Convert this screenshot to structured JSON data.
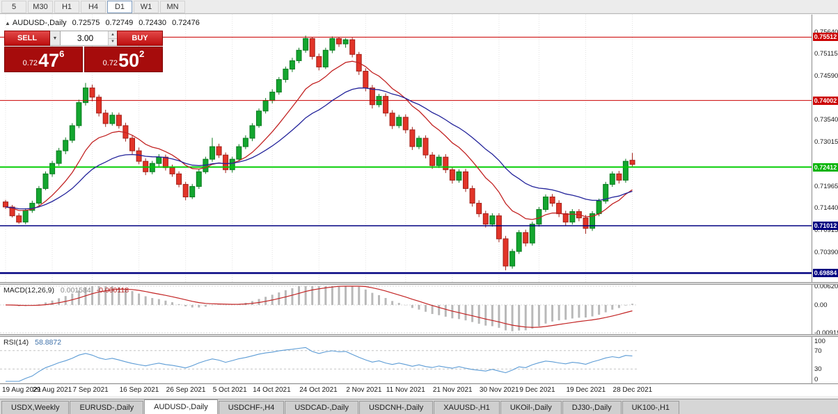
{
  "toolbar": {
    "timeframes": [
      {
        "label": "5",
        "active": false
      },
      {
        "label": "M30",
        "active": false
      },
      {
        "label": "H1",
        "active": false
      },
      {
        "label": "H4",
        "active": false
      },
      {
        "label": "D1",
        "active": true
      },
      {
        "label": "W1",
        "active": false
      },
      {
        "label": "MN",
        "active": false
      }
    ]
  },
  "chart": {
    "header": {
      "collapse_icon": "▲",
      "symbol": "AUDUSD-,Daily",
      "open": "0.72575",
      "high": "0.72749",
      "low": "0.72430",
      "close": "0.72476"
    }
  },
  "trade": {
    "sell_label": "SELL",
    "buy_label": "BUY",
    "volume": "3.00",
    "dropdown_icon": "▼",
    "up_icon": "▲",
    "down_icon": "▼",
    "bid": {
      "prefix": "0.72",
      "big": "47",
      "sup": "6"
    },
    "ask": {
      "prefix": "0.72",
      "big": "50",
      "sup": "2"
    }
  },
  "indicators": {
    "macd": {
      "title": "MACD(12,26,9)",
      "main": "0.001584",
      "signal": "-0.000118",
      "fast": 12,
      "slow": 26,
      "smooth": 9,
      "max": 0.0062,
      "min": -0.0092,
      "axis": [
        {
          "label": "0.00620",
          "value": 0.0062
        },
        {
          "label": "0.00",
          "value": 0
        },
        {
          "label": "-0.00919",
          "value": -0.00919
        }
      ]
    },
    "rsi": {
      "title": "RSI(14)",
      "value": "58.8872",
      "period": 14,
      "levels": [
        70,
        30
      ],
      "axis": [
        {
          "label": "100",
          "value": 100
        },
        {
          "label": "70",
          "value": 70
        },
        {
          "label": "30",
          "value": 30
        },
        {
          "label": "0",
          "value": 0
        }
      ]
    }
  },
  "chart_data": {
    "type": "candlestick",
    "symbol": "AUDUSD-",
    "timeframe": "Daily",
    "price_max": 0.7605,
    "price_min": 0.6967,
    "y_ticks": [
      {
        "label": "0.75640",
        "value": 0.7564
      },
      {
        "label": "0.75115",
        "value": 0.75115
      },
      {
        "label": "0.74590",
        "value": 0.7459
      },
      {
        "label": "0.73540",
        "value": 0.7354
      },
      {
        "label": "0.73015",
        "value": 0.73015
      },
      {
        "label": "0.71965",
        "value": 0.71965
      },
      {
        "label": "0.71440",
        "value": 0.7144
      },
      {
        "label": "0.70915",
        "value": 0.70915
      },
      {
        "label": "0.70390",
        "value": 0.7039
      }
    ],
    "levels": [
      {
        "label": "0.75512",
        "price": 0.75512,
        "color": "#cc0000",
        "badge": "#cc0000",
        "width": 1
      },
      {
        "label": "0.74002",
        "price": 0.74002,
        "color": "#cc0000",
        "badge": "#cc0000",
        "width": 1
      },
      {
        "label": "0.72412",
        "price": 0.72412,
        "color": "#00cc00",
        "badge": "#00b300",
        "width": 2
      },
      {
        "label": "0.71012",
        "price": 0.71012,
        "color": "#000080",
        "badge": "#000080",
        "width": 1.5
      },
      {
        "label": "0.69884",
        "price": 0.69884,
        "color": "#000080",
        "badge": "#000080",
        "width": 2.5
      }
    ],
    "overlays": [
      {
        "name": "ema-fast",
        "period": 12,
        "color": "#c22222"
      },
      {
        "name": "ema-slow",
        "period": 26,
        "color": "#22229a"
      }
    ],
    "x_labels": [
      {
        "text": "19 Aug 2021",
        "i": 0
      },
      {
        "text": "29 Aug 2021",
        "i": 7
      },
      {
        "text": "7 Sep 2021",
        "i": 13
      },
      {
        "text": "16 Sep 2021",
        "i": 20
      },
      {
        "text": "26 Sep 2021",
        "i": 27
      },
      {
        "text": "5 Oct 2021",
        "i": 34
      },
      {
        "text": "14 Oct 2021",
        "i": 40
      },
      {
        "text": "24 Oct 2021",
        "i": 47
      },
      {
        "text": "2 Nov 2021",
        "i": 54
      },
      {
        "text": "11 Nov 2021",
        "i": 60
      },
      {
        "text": "21 Nov 2021",
        "i": 67
      },
      {
        "text": "30 Nov 2021",
        "i": 74
      },
      {
        "text": "9 Dec 2021",
        "i": 80
      },
      {
        "text": "19 Dec 2021",
        "i": 87
      },
      {
        "text": "28 Dec 2021",
        "i": 94
      }
    ],
    "candles": [
      [
        0.7158,
        0.7163,
        0.7141,
        0.7146
      ],
      [
        0.7146,
        0.7151,
        0.7121,
        0.7125
      ],
      [
        0.7125,
        0.7131,
        0.7106,
        0.711
      ],
      [
        0.711,
        0.7143,
        0.7105,
        0.7138
      ],
      [
        0.7138,
        0.7161,
        0.7132,
        0.7155
      ],
      [
        0.7155,
        0.7196,
        0.715,
        0.719
      ],
      [
        0.719,
        0.7231,
        0.7186,
        0.7225
      ],
      [
        0.7225,
        0.7256,
        0.7218,
        0.725
      ],
      [
        0.725,
        0.7287,
        0.7244,
        0.728
      ],
      [
        0.728,
        0.7312,
        0.7272,
        0.7305
      ],
      [
        0.7305,
        0.7346,
        0.7299,
        0.734
      ],
      [
        0.734,
        0.7402,
        0.7334,
        0.7395
      ],
      [
        0.7395,
        0.7442,
        0.7388,
        0.743
      ],
      [
        0.743,
        0.7438,
        0.7398,
        0.7408
      ],
      [
        0.7408,
        0.7414,
        0.7362,
        0.737
      ],
      [
        0.737,
        0.7378,
        0.7337,
        0.7345
      ],
      [
        0.7345,
        0.7372,
        0.734,
        0.7365
      ],
      [
        0.7365,
        0.7371,
        0.7333,
        0.734
      ],
      [
        0.734,
        0.7347,
        0.7302,
        0.731
      ],
      [
        0.731,
        0.7316,
        0.7272,
        0.728
      ],
      [
        0.728,
        0.7288,
        0.7248,
        0.7255
      ],
      [
        0.7255,
        0.7262,
        0.7222,
        0.723
      ],
      [
        0.723,
        0.7256,
        0.7224,
        0.725
      ],
      [
        0.725,
        0.7272,
        0.7243,
        0.7265
      ],
      [
        0.7265,
        0.7271,
        0.7233,
        0.724
      ],
      [
        0.724,
        0.7247,
        0.7218,
        0.7225
      ],
      [
        0.7225,
        0.7231,
        0.7193,
        0.72
      ],
      [
        0.72,
        0.7206,
        0.7162,
        0.717
      ],
      [
        0.717,
        0.7201,
        0.7165,
        0.7195
      ],
      [
        0.7195,
        0.7236,
        0.7189,
        0.723
      ],
      [
        0.723,
        0.7266,
        0.7225,
        0.726
      ],
      [
        0.726,
        0.7311,
        0.7254,
        0.729
      ],
      [
        0.729,
        0.7297,
        0.7263,
        0.727
      ],
      [
        0.727,
        0.7276,
        0.7227,
        0.7235
      ],
      [
        0.7235,
        0.7266,
        0.7228,
        0.726
      ],
      [
        0.726,
        0.7296,
        0.7255,
        0.729
      ],
      [
        0.729,
        0.7317,
        0.7284,
        0.731
      ],
      [
        0.731,
        0.7346,
        0.7303,
        0.734
      ],
      [
        0.734,
        0.7381,
        0.7335,
        0.7375
      ],
      [
        0.7375,
        0.7406,
        0.7369,
        0.74
      ],
      [
        0.74,
        0.7427,
        0.7393,
        0.742
      ],
      [
        0.742,
        0.7456,
        0.7414,
        0.745
      ],
      [
        0.745,
        0.7481,
        0.7443,
        0.7475
      ],
      [
        0.7475,
        0.7502,
        0.7468,
        0.7495
      ],
      [
        0.7495,
        0.7526,
        0.7489,
        0.752
      ],
      [
        0.752,
        0.7555,
        0.7514,
        0.7548
      ],
      [
        0.7548,
        0.7552,
        0.7498,
        0.7505
      ],
      [
        0.7505,
        0.7512,
        0.7472,
        0.748
      ],
      [
        0.748,
        0.7526,
        0.7475,
        0.752
      ],
      [
        0.752,
        0.7553,
        0.7513,
        0.7548
      ],
      [
        0.7548,
        0.7551,
        0.7528,
        0.7535
      ],
      [
        0.7535,
        0.7549,
        0.7526,
        0.7545
      ],
      [
        0.7545,
        0.755,
        0.7503,
        0.751
      ],
      [
        0.751,
        0.7516,
        0.7461,
        0.747
      ],
      [
        0.747,
        0.7477,
        0.7422,
        0.743
      ],
      [
        0.743,
        0.7437,
        0.7381,
        0.739
      ],
      [
        0.739,
        0.7416,
        0.7384,
        0.741
      ],
      [
        0.741,
        0.7417,
        0.7362,
        0.737
      ],
      [
        0.737,
        0.7377,
        0.7332,
        0.734
      ],
      [
        0.734,
        0.7366,
        0.7334,
        0.736
      ],
      [
        0.736,
        0.7367,
        0.7322,
        0.733
      ],
      [
        0.733,
        0.7337,
        0.7282,
        0.729
      ],
      [
        0.729,
        0.7316,
        0.7284,
        0.731
      ],
      [
        0.731,
        0.7317,
        0.7262,
        0.727
      ],
      [
        0.727,
        0.7277,
        0.7237,
        0.7245
      ],
      [
        0.7245,
        0.7271,
        0.7239,
        0.7265
      ],
      [
        0.7265,
        0.7272,
        0.7227,
        0.7235
      ],
      [
        0.7235,
        0.7242,
        0.7202,
        0.721
      ],
      [
        0.721,
        0.7236,
        0.7204,
        0.723
      ],
      [
        0.723,
        0.7237,
        0.7182,
        0.719
      ],
      [
        0.719,
        0.7197,
        0.7147,
        0.7155
      ],
      [
        0.7155,
        0.7162,
        0.7122,
        0.713
      ],
      [
        0.713,
        0.7137,
        0.7097,
        0.7105
      ],
      [
        0.7105,
        0.7131,
        0.7099,
        0.7125
      ],
      [
        0.7125,
        0.7131,
        0.7062,
        0.707
      ],
      [
        0.707,
        0.7077,
        0.6995,
        0.7005
      ],
      [
        0.7005,
        0.7046,
        0.6999,
        0.704
      ],
      [
        0.704,
        0.7091,
        0.7034,
        0.7085
      ],
      [
        0.7085,
        0.7092,
        0.7052,
        0.706
      ],
      [
        0.706,
        0.7111,
        0.7054,
        0.7105
      ],
      [
        0.7105,
        0.7146,
        0.7099,
        0.714
      ],
      [
        0.714,
        0.7176,
        0.7134,
        0.717
      ],
      [
        0.717,
        0.7177,
        0.7147,
        0.7155
      ],
      [
        0.7155,
        0.7162,
        0.7122,
        0.713
      ],
      [
        0.713,
        0.7137,
        0.7102,
        0.711
      ],
      [
        0.711,
        0.7141,
        0.7104,
        0.7135
      ],
      [
        0.7135,
        0.7141,
        0.7112,
        0.712
      ],
      [
        0.712,
        0.7127,
        0.7082,
        0.7095
      ],
      [
        0.7095,
        0.7136,
        0.7089,
        0.713
      ],
      [
        0.713,
        0.7166,
        0.7124,
        0.716
      ],
      [
        0.716,
        0.7206,
        0.7154,
        0.72
      ],
      [
        0.72,
        0.7231,
        0.7194,
        0.7225
      ],
      [
        0.7225,
        0.7232,
        0.7202,
        0.721
      ],
      [
        0.721,
        0.7261,
        0.7204,
        0.7255
      ],
      [
        0.72575,
        0.72749,
        0.7243,
        0.72476
      ]
    ]
  },
  "colors": {
    "up": "#13a62f",
    "up_stroke": "#0b7a20",
    "down": "#e23428",
    "down_stroke": "#a2211a",
    "macd_hist": "#b9b9b9",
    "macd_signal": "#c22222",
    "rsi_line": "#5b9bd5",
    "grid": "#e2e2e2"
  },
  "tabs": [
    {
      "label": "USDX,Weekly",
      "active": false
    },
    {
      "label": "EURUSD-,Daily",
      "active": false
    },
    {
      "label": "AUDUSD-,Daily",
      "active": true
    },
    {
      "label": "USDCHF-,H4",
      "active": false
    },
    {
      "label": "USDCAD-,Daily",
      "active": false
    },
    {
      "label": "USDCNH-,Daily",
      "active": false
    },
    {
      "label": "XAUUSD-,H1",
      "active": false
    },
    {
      "label": "UKOil-,Daily",
      "active": false
    },
    {
      "label": "DJ30-,Daily",
      "active": false
    },
    {
      "label": "UK100-,H1",
      "active": false
    }
  ]
}
